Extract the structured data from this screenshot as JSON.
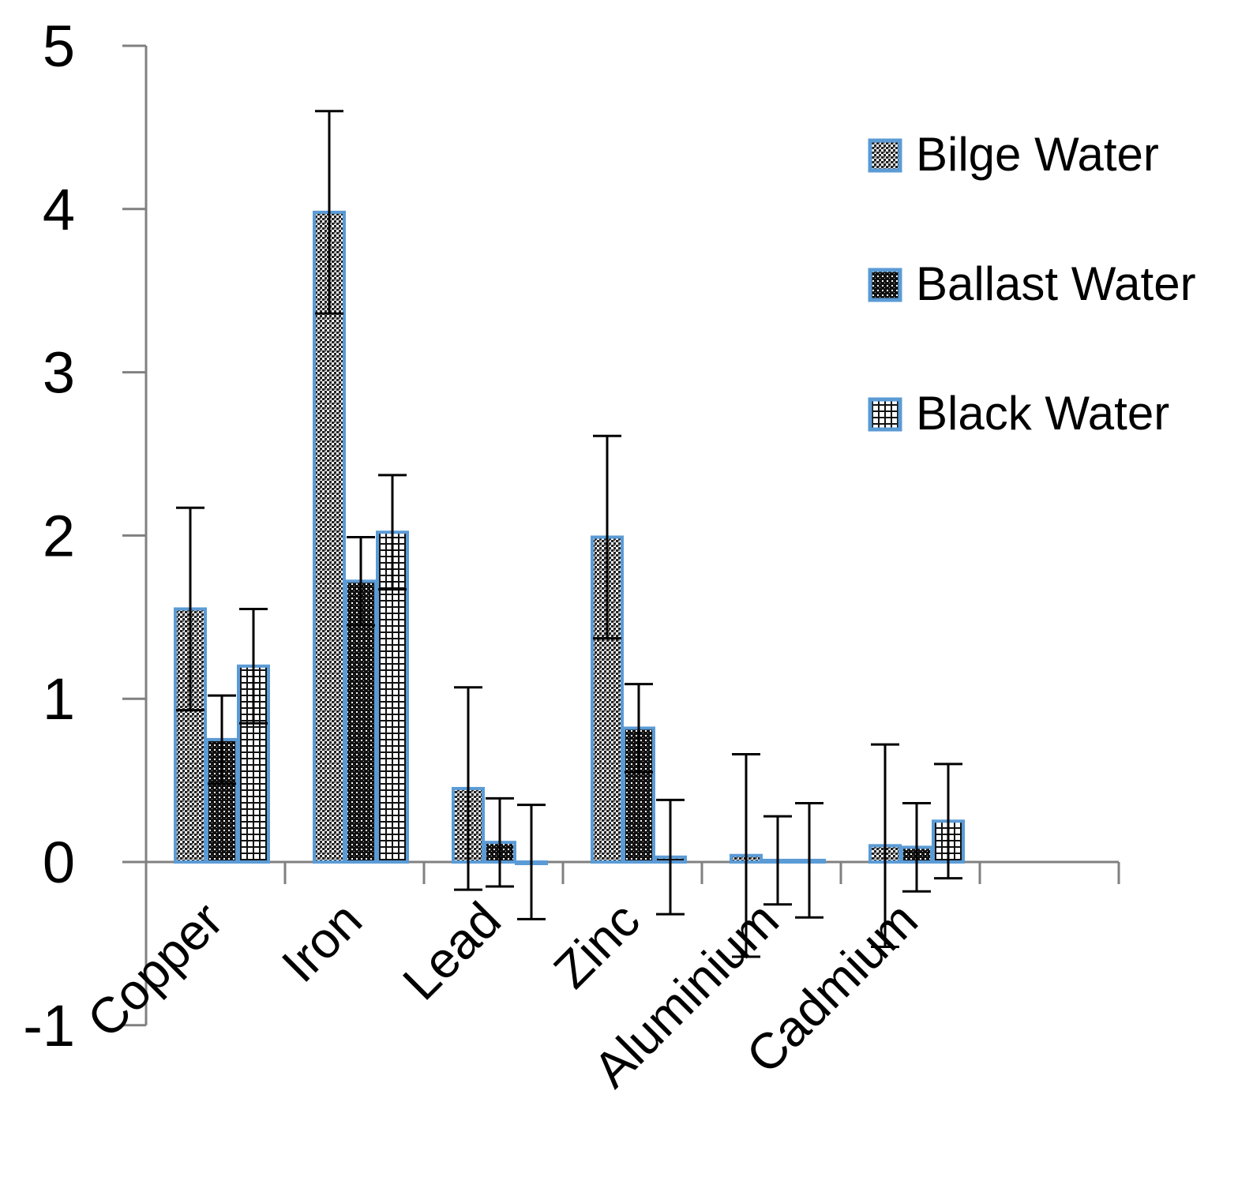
{
  "chart_data": {
    "type": "bar",
    "title": "",
    "xlabel": "",
    "ylabel": "",
    "ylim": [
      -1,
      5
    ],
    "yticks": [
      "5",
      "4",
      "3",
      "2",
      "1",
      "0",
      "-1"
    ],
    "categories": [
      "Copper",
      "Iron",
      "Lead",
      "Zinc",
      "Aluminium",
      "Cadmium"
    ],
    "series": [
      {
        "name": "Bilge Water",
        "pattern": "fine",
        "values": [
          1.55,
          3.98,
          0.45,
          1.99,
          0.04,
          0.1
        ],
        "errors": [
          0.62,
          0.62,
          0.62,
          0.62,
          0.62,
          0.62
        ]
      },
      {
        "name": "Ballast Water",
        "pattern": "dark",
        "values": [
          0.75,
          1.72,
          0.12,
          0.82,
          0.01,
          0.09
        ],
        "errors": [
          0.27,
          0.27,
          0.27,
          0.27,
          0.27,
          0.27
        ]
      },
      {
        "name": "Black Water",
        "pattern": "grid",
        "values": [
          1.2,
          2.02,
          0.0,
          0.03,
          0.01,
          0.25
        ],
        "errors": [
          0.35,
          0.35,
          0.35,
          0.35,
          0.35,
          0.35
        ]
      }
    ],
    "grid": false,
    "legend_position": "right",
    "colors": {
      "bar_border": "#5b9bd5",
      "axis": "#808080",
      "error_bar": "#000000",
      "fill_light": "#ffffff",
      "fill_dark": "#000000"
    }
  }
}
